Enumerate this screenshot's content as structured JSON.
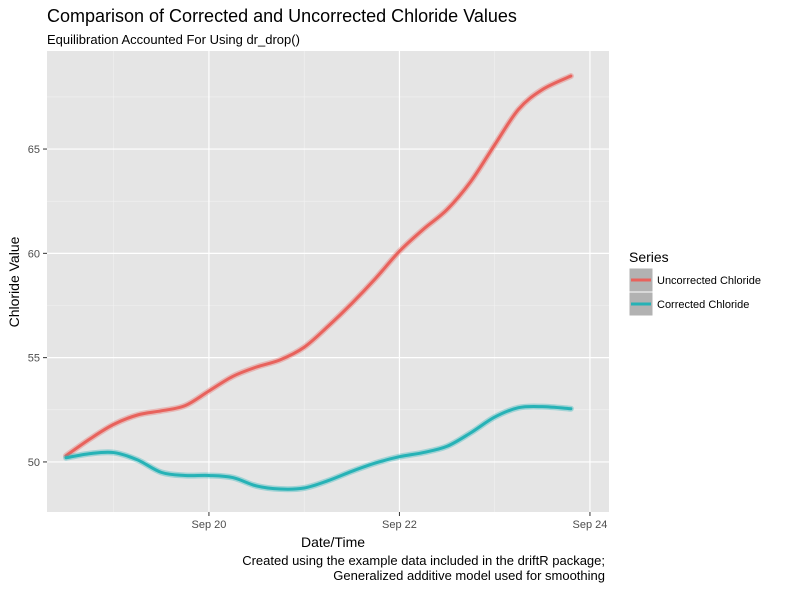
{
  "chart_data": {
    "type": "line",
    "title": "Comparison of Corrected and Uncorrected Chloride Values",
    "subtitle": "Equilibration Accounted For Using dr_drop()",
    "xlabel": "Date/Time",
    "ylabel": "Chloride Value",
    "caption_lines": [
      "Created using the example data included in the driftR package;",
      "Generalized additive model used for smoothing"
    ],
    "x_ticks": [
      {
        "value": 20,
        "label": "Sep 20"
      },
      {
        "value": 22,
        "label": "Sep 22"
      },
      {
        "value": 24,
        "label": "Sep 24"
      }
    ],
    "y_ticks": [
      50,
      55,
      60,
      65
    ],
    "xlim": [
      18.3,
      24.2
    ],
    "ylim": [
      47.6,
      69.7
    ],
    "x_unit": "day of September",
    "grid": true,
    "background": "#e5e5e5",
    "legend": {
      "title": "Series",
      "position": "right"
    },
    "series": [
      {
        "name": "Uncorrected Chloride",
        "color": "#e8625c",
        "points": [
          [
            18.5,
            50.3
          ],
          [
            18.75,
            51.1
          ],
          [
            19.0,
            51.8
          ],
          [
            19.25,
            52.25
          ],
          [
            19.5,
            52.45
          ],
          [
            19.75,
            52.7
          ],
          [
            20.0,
            53.4
          ],
          [
            20.25,
            54.1
          ],
          [
            20.5,
            54.55
          ],
          [
            20.75,
            54.9
          ],
          [
            21.0,
            55.5
          ],
          [
            21.25,
            56.5
          ],
          [
            21.5,
            57.6
          ],
          [
            21.75,
            58.8
          ],
          [
            22.0,
            60.1
          ],
          [
            22.25,
            61.15
          ],
          [
            22.5,
            62.1
          ],
          [
            22.75,
            63.45
          ],
          [
            23.0,
            65.2
          ],
          [
            23.25,
            66.9
          ],
          [
            23.5,
            67.85
          ],
          [
            23.8,
            68.5
          ]
        ]
      },
      {
        "name": "Corrected Chloride",
        "color": "#26b2b6",
        "points": [
          [
            18.5,
            50.2
          ],
          [
            18.75,
            50.4
          ],
          [
            19.0,
            50.45
          ],
          [
            19.25,
            50.1
          ],
          [
            19.5,
            49.5
          ],
          [
            19.75,
            49.35
          ],
          [
            20.0,
            49.35
          ],
          [
            20.25,
            49.25
          ],
          [
            20.5,
            48.85
          ],
          [
            20.75,
            48.7
          ],
          [
            21.0,
            48.75
          ],
          [
            21.25,
            49.1
          ],
          [
            21.5,
            49.55
          ],
          [
            21.75,
            49.95
          ],
          [
            22.0,
            50.25
          ],
          [
            22.25,
            50.45
          ],
          [
            22.5,
            50.75
          ],
          [
            22.75,
            51.4
          ],
          [
            23.0,
            52.15
          ],
          [
            23.25,
            52.6
          ],
          [
            23.5,
            52.65
          ],
          [
            23.8,
            52.55
          ]
        ]
      }
    ]
  }
}
